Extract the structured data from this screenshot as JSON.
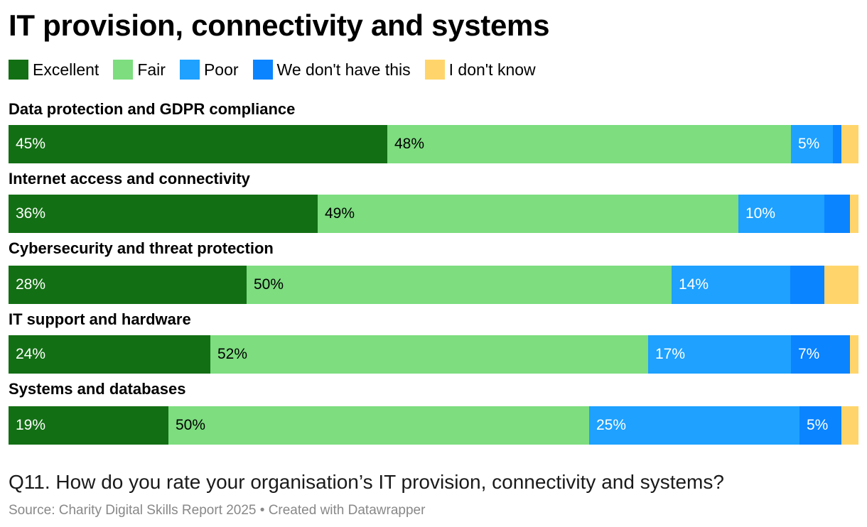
{
  "chart_data": {
    "type": "bar",
    "orientation": "horizontal",
    "stacked": true,
    "title": "IT provision, connectivity and systems",
    "legend_position": "top-left",
    "categories": [
      "Data protection and GDPR compliance",
      "Internet access and connectivity",
      "Cybersecurity and threat protection",
      "IT support and hardware",
      "Systems and databases"
    ],
    "series": [
      {
        "name": "Excellent",
        "color": "#136f14",
        "label_color": "#ffffff",
        "values": [
          45,
          36,
          28,
          24,
          19
        ],
        "labels": [
          "45%",
          "36%",
          "28%",
          "24%",
          "19%"
        ]
      },
      {
        "name": "Fair",
        "color": "#7ddd7f",
        "label_color": "#000000",
        "values": [
          48,
          49,
          50,
          52,
          50
        ],
        "labels": [
          "48%",
          "49%",
          "50%",
          "52%",
          "50%"
        ]
      },
      {
        "name": "Poor",
        "color": "#1ea1ff",
        "label_color": "#ffffff",
        "values": [
          5,
          10,
          14,
          17,
          25
        ],
        "labels": [
          "5%",
          "10%",
          "14%",
          "17%",
          "25%"
        ]
      },
      {
        "name": "We don't have this",
        "color": "#0a84ff",
        "label_color": "#ffffff",
        "values": [
          1,
          3,
          4,
          7,
          5
        ],
        "labels": [
          "",
          "",
          "",
          "7%",
          "5%"
        ]
      },
      {
        "name": "I don't know",
        "color": "#ffd56b",
        "label_color": "#000000",
        "values": [
          2,
          1,
          4,
          1,
          2
        ],
        "labels": [
          "",
          "",
          "",
          "",
          ""
        ]
      }
    ],
    "xlim": [
      0,
      100
    ]
  },
  "footer": {
    "question": "Q11. How do you rate your organisation’s IT provision, connectivity and systems?",
    "source": "Source: Charity Digital Skills Report 2025 • Created with Datawrapper"
  }
}
